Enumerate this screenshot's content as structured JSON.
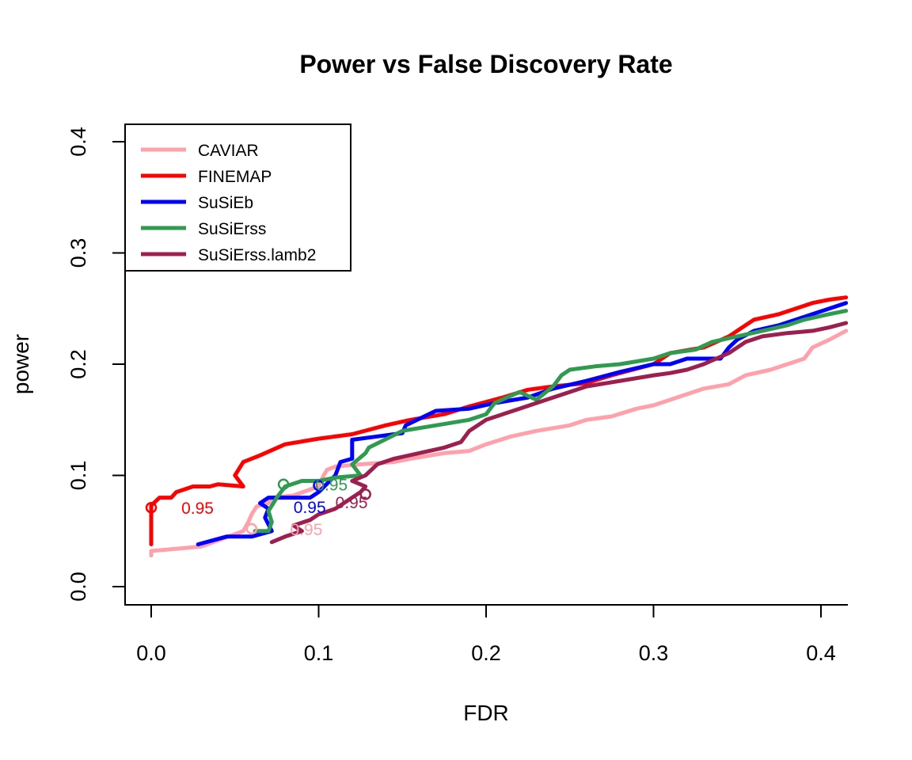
{
  "chart_data": {
    "type": "line",
    "title": "Power vs False Discovery Rate",
    "xlabel": "FDR",
    "ylabel": "power",
    "xlim": [
      -0.015,
      0.415
    ],
    "ylim": [
      -0.015,
      0.415
    ],
    "xticks": [
      "0.0",
      "0.1",
      "0.2",
      "0.3",
      "0.4"
    ],
    "yticks": [
      "0.0",
      "0.1",
      "0.2",
      "0.3",
      "0.4"
    ],
    "grid": false,
    "legend_position": "top-left",
    "series": [
      {
        "name": "CAVIAR",
        "color": "#ffa0ab",
        "points": [
          [
            0.0,
            0.028
          ],
          [
            0.0,
            0.032
          ],
          [
            0.03,
            0.036
          ],
          [
            0.055,
            0.05
          ],
          [
            0.058,
            0.058
          ],
          [
            0.06,
            0.065
          ],
          [
            0.063,
            0.072
          ],
          [
            0.07,
            0.075
          ],
          [
            0.072,
            0.08
          ],
          [
            0.085,
            0.082
          ],
          [
            0.1,
            0.09
          ],
          [
            0.103,
            0.1
          ],
          [
            0.105,
            0.105
          ],
          [
            0.11,
            0.108
          ],
          [
            0.125,
            0.11
          ],
          [
            0.145,
            0.112
          ],
          [
            0.155,
            0.115
          ],
          [
            0.175,
            0.12
          ],
          [
            0.19,
            0.122
          ],
          [
            0.2,
            0.128
          ],
          [
            0.215,
            0.135
          ],
          [
            0.23,
            0.14
          ],
          [
            0.25,
            0.145
          ],
          [
            0.26,
            0.15
          ],
          [
            0.275,
            0.153
          ],
          [
            0.29,
            0.16
          ],
          [
            0.3,
            0.163
          ],
          [
            0.31,
            0.168
          ],
          [
            0.32,
            0.173
          ],
          [
            0.33,
            0.178
          ],
          [
            0.345,
            0.182
          ],
          [
            0.355,
            0.19
          ],
          [
            0.37,
            0.195
          ],
          [
            0.38,
            0.2
          ],
          [
            0.39,
            0.205
          ],
          [
            0.395,
            0.215
          ],
          [
            0.405,
            0.222
          ],
          [
            0.415,
            0.23
          ]
        ],
        "anno_text": "0.95",
        "anno_point": [
          0.06,
          0.052
        ],
        "anno_label": [
          0.083,
          0.052
        ]
      },
      {
        "name": "FINEMAP",
        "color": "#ff0000",
        "points": [
          [
            0.0,
            0.038
          ],
          [
            0.0,
            0.073
          ],
          [
            0.005,
            0.08
          ],
          [
            0.012,
            0.08
          ],
          [
            0.015,
            0.085
          ],
          [
            0.025,
            0.09
          ],
          [
            0.035,
            0.09
          ],
          [
            0.04,
            0.092
          ],
          [
            0.055,
            0.09
          ],
          [
            0.05,
            0.1
          ],
          [
            0.055,
            0.112
          ],
          [
            0.065,
            0.118
          ],
          [
            0.08,
            0.128
          ],
          [
            0.1,
            0.133
          ],
          [
            0.12,
            0.137
          ],
          [
            0.14,
            0.145
          ],
          [
            0.155,
            0.15
          ],
          [
            0.175,
            0.155
          ],
          [
            0.19,
            0.162
          ],
          [
            0.21,
            0.17
          ],
          [
            0.225,
            0.177
          ],
          [
            0.24,
            0.18
          ],
          [
            0.26,
            0.183
          ],
          [
            0.275,
            0.19
          ],
          [
            0.3,
            0.2
          ],
          [
            0.31,
            0.21
          ],
          [
            0.33,
            0.215
          ],
          [
            0.345,
            0.225
          ],
          [
            0.355,
            0.235
          ],
          [
            0.36,
            0.24
          ],
          [
            0.375,
            0.245
          ],
          [
            0.385,
            0.25
          ],
          [
            0.395,
            0.255
          ],
          [
            0.405,
            0.258
          ],
          [
            0.415,
            0.26
          ]
        ],
        "anno_text": "0.95",
        "anno_point": [
          0.0,
          0.071
        ],
        "anno_label": [
          0.018,
          0.071
        ]
      },
      {
        "name": "SuSiEb",
        "color": "#0000ff",
        "points": [
          [
            0.028,
            0.038
          ],
          [
            0.045,
            0.045
          ],
          [
            0.06,
            0.045
          ],
          [
            0.072,
            0.05
          ],
          [
            0.068,
            0.062
          ],
          [
            0.07,
            0.07
          ],
          [
            0.065,
            0.075
          ],
          [
            0.07,
            0.08
          ],
          [
            0.095,
            0.08
          ],
          [
            0.1,
            0.085
          ],
          [
            0.11,
            0.1
          ],
          [
            0.113,
            0.112
          ],
          [
            0.12,
            0.115
          ],
          [
            0.12,
            0.132
          ],
          [
            0.135,
            0.135
          ],
          [
            0.15,
            0.138
          ],
          [
            0.152,
            0.145
          ],
          [
            0.17,
            0.158
          ],
          [
            0.19,
            0.16
          ],
          [
            0.205,
            0.165
          ],
          [
            0.225,
            0.17
          ],
          [
            0.24,
            0.178
          ],
          [
            0.26,
            0.185
          ],
          [
            0.28,
            0.193
          ],
          [
            0.3,
            0.2
          ],
          [
            0.31,
            0.2
          ],
          [
            0.32,
            0.205
          ],
          [
            0.34,
            0.205
          ],
          [
            0.345,
            0.215
          ],
          [
            0.35,
            0.222
          ],
          [
            0.36,
            0.23
          ],
          [
            0.375,
            0.235
          ],
          [
            0.385,
            0.24
          ],
          [
            0.395,
            0.245
          ],
          [
            0.405,
            0.25
          ],
          [
            0.415,
            0.255
          ]
        ],
        "anno_text": "0.95",
        "anno_point": [
          0.1,
          0.091
        ],
        "anno_label": [
          0.085,
          0.072
        ]
      },
      {
        "name": "SuSiErss",
        "color": "#2e9b4f",
        "points": [
          [
            0.062,
            0.05
          ],
          [
            0.07,
            0.05
          ],
          [
            0.072,
            0.058
          ],
          [
            0.07,
            0.068
          ],
          [
            0.075,
            0.08
          ],
          [
            0.08,
            0.09
          ],
          [
            0.09,
            0.095
          ],
          [
            0.1,
            0.095
          ],
          [
            0.11,
            0.098
          ],
          [
            0.125,
            0.1
          ],
          [
            0.12,
            0.11
          ],
          [
            0.128,
            0.12
          ],
          [
            0.13,
            0.125
          ],
          [
            0.15,
            0.14
          ],
          [
            0.17,
            0.145
          ],
          [
            0.19,
            0.15
          ],
          [
            0.2,
            0.155
          ],
          [
            0.205,
            0.165
          ],
          [
            0.22,
            0.175
          ],
          [
            0.23,
            0.168
          ],
          [
            0.24,
            0.18
          ],
          [
            0.245,
            0.19
          ],
          [
            0.25,
            0.195
          ],
          [
            0.265,
            0.198
          ],
          [
            0.28,
            0.2
          ],
          [
            0.3,
            0.205
          ],
          [
            0.31,
            0.21
          ],
          [
            0.325,
            0.213
          ],
          [
            0.335,
            0.22
          ],
          [
            0.35,
            0.225
          ],
          [
            0.365,
            0.23
          ],
          [
            0.38,
            0.235
          ],
          [
            0.39,
            0.24
          ],
          [
            0.405,
            0.245
          ],
          [
            0.415,
            0.248
          ]
        ],
        "anno_text": "0.95",
        "anno_point": [
          0.079,
          0.092
        ],
        "anno_label": [
          0.098,
          0.092
        ]
      },
      {
        "name": "SuSiErss.lamb2",
        "color": "#9c1f4f",
        "points": [
          [
            0.072,
            0.04
          ],
          [
            0.08,
            0.045
          ],
          [
            0.09,
            0.05
          ],
          [
            0.085,
            0.055
          ],
          [
            0.095,
            0.06
          ],
          [
            0.1,
            0.065
          ],
          [
            0.11,
            0.07
          ],
          [
            0.115,
            0.075
          ],
          [
            0.12,
            0.08
          ],
          [
            0.125,
            0.085
          ],
          [
            0.128,
            0.09
          ],
          [
            0.12,
            0.095
          ],
          [
            0.128,
            0.1
          ],
          [
            0.135,
            0.11
          ],
          [
            0.145,
            0.115
          ],
          [
            0.16,
            0.12
          ],
          [
            0.175,
            0.125
          ],
          [
            0.185,
            0.13
          ],
          [
            0.19,
            0.14
          ],
          [
            0.2,
            0.15
          ],
          [
            0.22,
            0.16
          ],
          [
            0.24,
            0.17
          ],
          [
            0.26,
            0.18
          ],
          [
            0.28,
            0.185
          ],
          [
            0.3,
            0.19
          ],
          [
            0.31,
            0.192
          ],
          [
            0.32,
            0.195
          ],
          [
            0.33,
            0.2
          ],
          [
            0.345,
            0.21
          ],
          [
            0.355,
            0.22
          ],
          [
            0.365,
            0.225
          ],
          [
            0.38,
            0.228
          ],
          [
            0.395,
            0.23
          ],
          [
            0.405,
            0.233
          ],
          [
            0.415,
            0.237
          ]
        ],
        "anno_text": "0.95",
        "anno_point": [
          0.128,
          0.083
        ],
        "anno_label": [
          0.11,
          0.076
        ]
      }
    ]
  }
}
